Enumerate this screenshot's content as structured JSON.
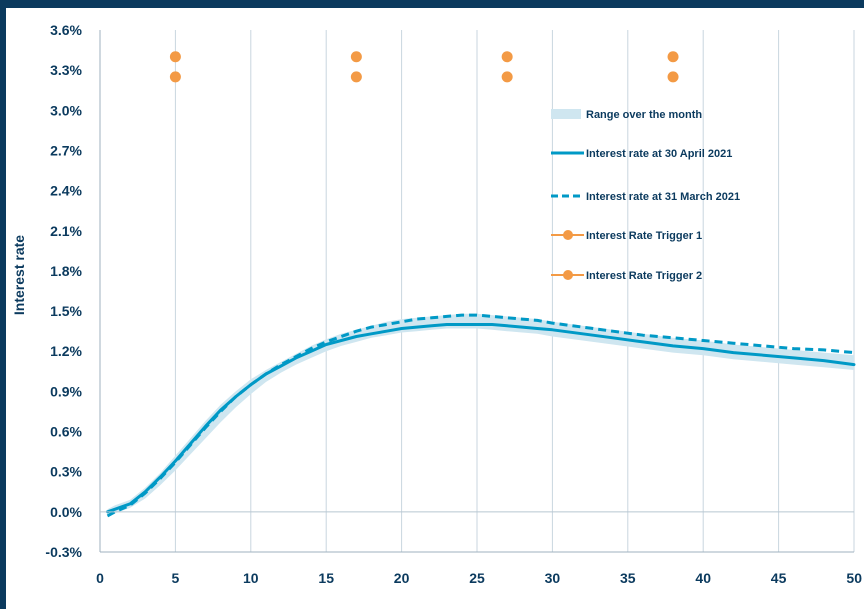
{
  "chart_data": {
    "type": "line",
    "title": "",
    "xlabel": "",
    "ylabel": "Interest rate",
    "xlim": [
      0,
      50
    ],
    "ylim": [
      -0.3,
      3.6
    ],
    "x_ticks": [
      "0",
      "5",
      "10",
      "15",
      "20",
      "25",
      "30",
      "35",
      "40",
      "45",
      "50"
    ],
    "y_ticks": [
      "-0.3%",
      "0.0%",
      "0.3%",
      "0.6%",
      "0.9%",
      "1.2%",
      "1.5%",
      "1.8%",
      "2.1%",
      "2.4%",
      "2.7%",
      "3.0%",
      "3.3%",
      "3.6%"
    ],
    "grid": "vertical",
    "legend_position": "right",
    "series": [
      {
        "name": "Range over the month",
        "kind": "band",
        "color": "#cfe6f0",
        "x": [
          0.5,
          1,
          2,
          3,
          4,
          5,
          6,
          7,
          8,
          9,
          10,
          11,
          12,
          13,
          14,
          15,
          16,
          17,
          18,
          19,
          20,
          21,
          22,
          23,
          24,
          25,
          26,
          27,
          28,
          29,
          30,
          32,
          34,
          36,
          38,
          40,
          42,
          44,
          46,
          48,
          50
        ],
        "lower": [
          -0.04,
          -0.01,
          0.03,
          0.1,
          0.2,
          0.31,
          0.43,
          0.55,
          0.67,
          0.78,
          0.88,
          0.97,
          1.04,
          1.1,
          1.15,
          1.2,
          1.24,
          1.27,
          1.3,
          1.32,
          1.34,
          1.35,
          1.36,
          1.37,
          1.37,
          1.37,
          1.36,
          1.35,
          1.34,
          1.33,
          1.31,
          1.28,
          1.25,
          1.22,
          1.19,
          1.17,
          1.14,
          1.12,
          1.1,
          1.08,
          1.06
        ],
        "upper": [
          0.02,
          0.05,
          0.09,
          0.18,
          0.29,
          0.42,
          0.55,
          0.68,
          0.8,
          0.9,
          0.99,
          1.06,
          1.12,
          1.18,
          1.24,
          1.29,
          1.33,
          1.36,
          1.39,
          1.42,
          1.44,
          1.45,
          1.46,
          1.47,
          1.48,
          1.48,
          1.47,
          1.46,
          1.45,
          1.44,
          1.42,
          1.39,
          1.36,
          1.33,
          1.3,
          1.28,
          1.25,
          1.23,
          1.21,
          1.19,
          1.17
        ]
      },
      {
        "name": "Interest rate at 30 April 2021",
        "kind": "line",
        "style": "solid",
        "color": "#0099c6",
        "x": [
          0.5,
          1,
          2,
          3,
          4,
          5,
          6,
          7,
          8,
          9,
          10,
          11,
          12,
          13,
          14,
          15,
          16,
          17,
          18,
          19,
          20,
          21,
          22,
          23,
          24,
          25,
          26,
          27,
          28,
          29,
          30,
          32,
          34,
          36,
          38,
          40,
          42,
          44,
          46,
          48,
          50
        ],
        "y": [
          0.0,
          0.02,
          0.06,
          0.15,
          0.26,
          0.38,
          0.51,
          0.64,
          0.76,
          0.86,
          0.95,
          1.03,
          1.09,
          1.15,
          1.2,
          1.25,
          1.28,
          1.31,
          1.33,
          1.35,
          1.37,
          1.38,
          1.39,
          1.4,
          1.4,
          1.4,
          1.4,
          1.39,
          1.38,
          1.37,
          1.36,
          1.33,
          1.3,
          1.27,
          1.24,
          1.22,
          1.19,
          1.17,
          1.15,
          1.13,
          1.1
        ]
      },
      {
        "name": "Interest rate at 31 March 2021",
        "kind": "line",
        "style": "dashed",
        "color": "#0099c6",
        "x": [
          0.5,
          1,
          2,
          3,
          4,
          5,
          6,
          7,
          8,
          9,
          10,
          11,
          12,
          13,
          14,
          15,
          16,
          17,
          18,
          19,
          20,
          21,
          22,
          23,
          24,
          25,
          26,
          27,
          28,
          29,
          30,
          32,
          34,
          36,
          38,
          40,
          42,
          44,
          46,
          48,
          50
        ],
        "y": [
          -0.03,
          0.0,
          0.05,
          0.14,
          0.25,
          0.37,
          0.5,
          0.63,
          0.75,
          0.86,
          0.95,
          1.03,
          1.1,
          1.16,
          1.22,
          1.27,
          1.31,
          1.35,
          1.38,
          1.4,
          1.42,
          1.44,
          1.45,
          1.46,
          1.47,
          1.47,
          1.46,
          1.45,
          1.44,
          1.43,
          1.41,
          1.38,
          1.35,
          1.32,
          1.3,
          1.28,
          1.26,
          1.24,
          1.22,
          1.21,
          1.19
        ]
      },
      {
        "name": "Interest Rate Trigger 1",
        "kind": "points",
        "color": "#f39a45",
        "x": [
          5,
          17,
          27,
          38
        ],
        "y": [
          3.4,
          3.4,
          3.4,
          3.4
        ]
      },
      {
        "name": "Interest Rate Trigger 2",
        "kind": "points",
        "color": "#f39a45",
        "x": [
          5,
          17,
          27,
          38
        ],
        "y": [
          3.25,
          3.25,
          3.25,
          3.25
        ]
      }
    ]
  }
}
